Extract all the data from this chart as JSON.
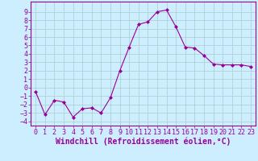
{
  "x": [
    0,
    1,
    2,
    3,
    4,
    5,
    6,
    7,
    8,
    9,
    10,
    11,
    12,
    13,
    14,
    15,
    16,
    17,
    18,
    19,
    20,
    21,
    22,
    23
  ],
  "y": [
    -0.5,
    -3.2,
    -1.5,
    -1.7,
    -3.5,
    -2.5,
    -2.4,
    -3.0,
    -1.2,
    2.0,
    4.8,
    7.5,
    7.8,
    9.0,
    9.2,
    7.2,
    4.8,
    4.7,
    3.8,
    2.8,
    2.7,
    2.7,
    2.7,
    2.5
  ],
  "line_color": "#990099",
  "marker": "D",
  "marker_size": 2,
  "bg_color": "#cceeff",
  "grid_color": "#aacccc",
  "xlabel": "Windchill (Refroidissement éolien,°C)",
  "xlabel_fontsize": 7,
  "tick_fontsize": 6,
  "ylim": [
    -4.5,
    10.2
  ],
  "xlim": [
    -0.5,
    23.5
  ],
  "yticks": [
    -4,
    -3,
    -2,
    -1,
    0,
    1,
    2,
    3,
    4,
    5,
    6,
    7,
    8,
    9
  ],
  "xticks": [
    0,
    1,
    2,
    3,
    4,
    5,
    6,
    7,
    8,
    9,
    10,
    11,
    12,
    13,
    14,
    15,
    16,
    17,
    18,
    19,
    20,
    21,
    22,
    23
  ]
}
